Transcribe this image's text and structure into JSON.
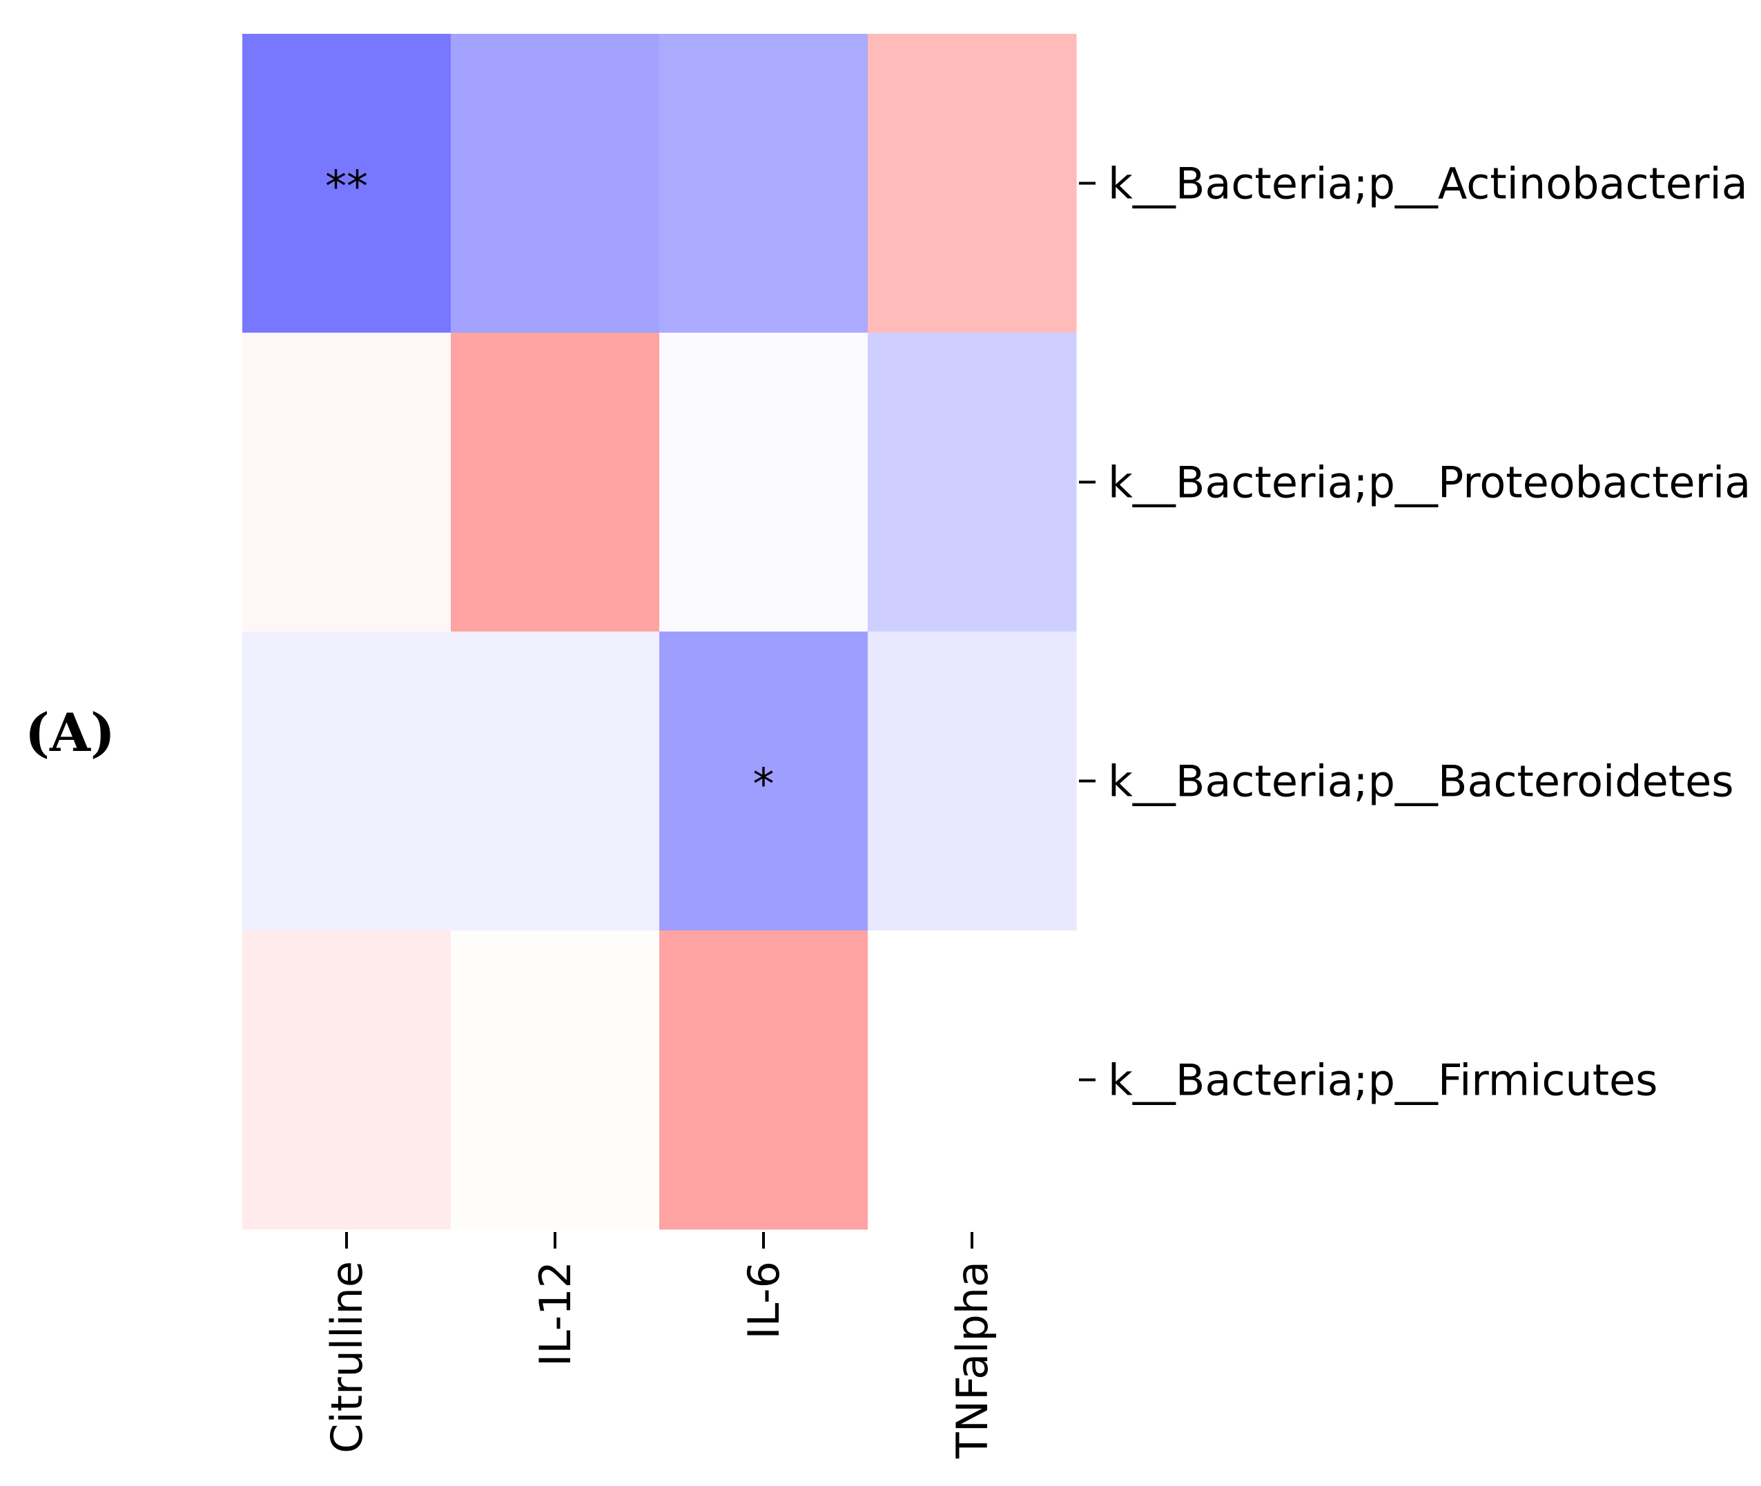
{
  "panel_label": "(A)",
  "chart_data": {
    "type": "heatmap",
    "title": "",
    "xlabel": "",
    "ylabel": "",
    "columns": [
      "Citrulline",
      "IL-12",
      "IL-6",
      "TNFalpha"
    ],
    "rows": [
      "k__Bacteria;p__Actinobacteria",
      "k__Bacteria;p__Proteobacteria",
      "k__Bacteria;p__Bacteroidetes",
      "k__Bacteria;p__Firmicutes"
    ],
    "values": [
      [
        -0.53,
        -0.36,
        -0.33,
        0.27
      ],
      [
        0.03,
        0.36,
        -0.02,
        -0.19
      ],
      [
        -0.06,
        -0.06,
        -0.38,
        -0.09
      ],
      [
        0.08,
        0.01,
        0.36,
        0.0
      ]
    ],
    "significance": [
      [
        "**",
        "",
        "",
        ""
      ],
      [
        "",
        "",
        "",
        ""
      ],
      [
        "",
        "",
        "*",
        ""
      ],
      [
        "",
        "",
        "",
        ""
      ]
    ],
    "colormap": "bwr",
    "vmin": -1,
    "vmax": 1,
    "colorbar": false,
    "colors": {
      "negative": "#0000ff",
      "neutral": "#ffffff",
      "positive": "#ff0000"
    }
  }
}
